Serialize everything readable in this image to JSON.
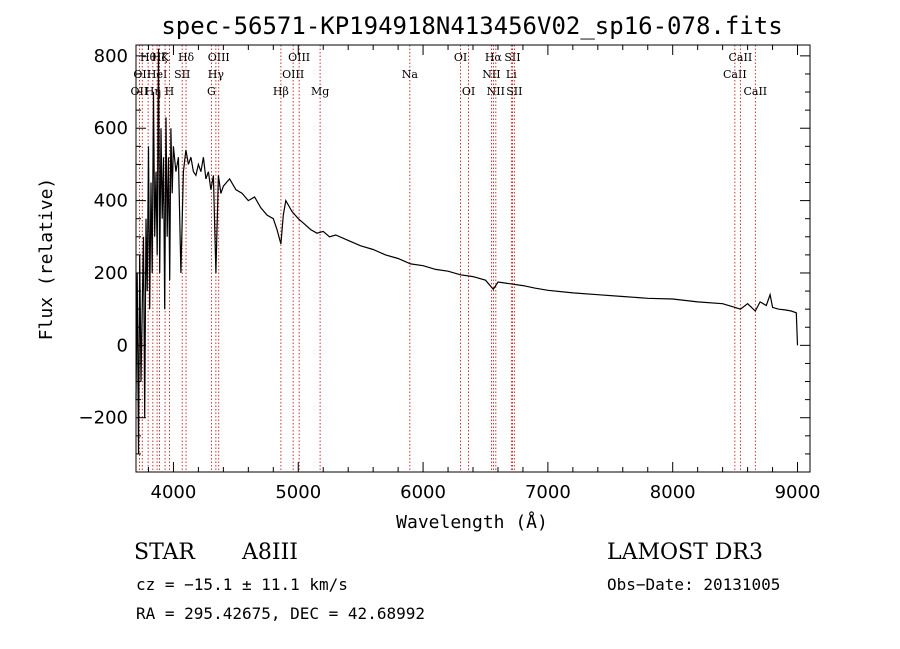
{
  "chart_data": {
    "type": "line",
    "title": "spec-56571-KP194918N413456V02_sp16-078.fits",
    "xlabel": "Wavelength (Å)",
    "ylabel": "Flux (relative)",
    "xlim": [
      3700,
      9100
    ],
    "ylim": [
      -350,
      830
    ],
    "xticks": [
      4000,
      5000,
      6000,
      7000,
      8000,
      9000
    ],
    "xtick_labels": [
      "4000",
      "5000",
      "6000",
      "7000",
      "8000",
      "9000"
    ],
    "yticks": [
      -200,
      0,
      200,
      400,
      600,
      800
    ],
    "ytick_labels": [
      "−200",
      "0",
      "200",
      "400",
      "600",
      "800"
    ],
    "series": [
      {
        "name": "flux",
        "x": [
          3700,
          3710,
          3720,
          3730,
          3740,
          3750,
          3760,
          3770,
          3780,
          3790,
          3800,
          3810,
          3820,
          3830,
          3840,
          3850,
          3860,
          3870,
          3880,
          3890,
          3900,
          3910,
          3920,
          3930,
          3940,
          3950,
          3960,
          3970,
          3980,
          3990,
          4000,
          4020,
          4040,
          4060,
          4080,
          4100,
          4120,
          4140,
          4160,
          4180,
          4200,
          4220,
          4240,
          4260,
          4280,
          4300,
          4320,
          4340,
          4360,
          4380,
          4400,
          4450,
          4500,
          4550,
          4600,
          4650,
          4700,
          4750,
          4800,
          4830,
          4861,
          4880,
          4900,
          4950,
          5000,
          5050,
          5100,
          5150,
          5200,
          5250,
          5300,
          5400,
          5500,
          5600,
          5700,
          5800,
          5900,
          6000,
          6100,
          6200,
          6300,
          6400,
          6500,
          6563,
          6600,
          6700,
          6800,
          6900,
          7000,
          7200,
          7400,
          7600,
          7800,
          8000,
          8200,
          8400,
          8500,
          8542,
          8600,
          8662,
          8700,
          8750,
          8780,
          8800,
          8850,
          8900,
          8950,
          8990,
          9000
        ],
        "y": [
          -150,
          200,
          -300,
          250,
          -100,
          100,
          300,
          -200,
          350,
          150,
          550,
          100,
          450,
          200,
          700,
          300,
          480,
          250,
          820,
          200,
          600,
          350,
          520,
          100,
          630,
          300,
          520,
          180,
          600,
          420,
          550,
          480,
          520,
          200,
          480,
          540,
          500,
          520,
          480,
          470,
          500,
          480,
          520,
          460,
          480,
          430,
          470,
          200,
          470,
          420,
          440,
          460,
          430,
          420,
          400,
          410,
          380,
          360,
          350,
          320,
          280,
          360,
          400,
          370,
          350,
          335,
          320,
          310,
          315,
          300,
          305,
          290,
          275,
          265,
          250,
          240,
          225,
          220,
          210,
          205,
          195,
          190,
          180,
          155,
          175,
          170,
          165,
          158,
          152,
          145,
          140,
          135,
          130,
          128,
          120,
          115,
          105,
          100,
          115,
          95,
          120,
          110,
          140,
          105,
          100,
          98,
          95,
          90,
          0
        ]
      }
    ],
    "lines": [
      {
        "x": 3727,
        "label": "OII",
        "row": 2
      },
      {
        "x": 3750,
        "label": "OII",
        "row": 1
      },
      {
        "x": 3797,
        "label": "Hθ",
        "row": 0
      },
      {
        "x": 3835,
        "label": "Hη",
        "row": 2
      },
      {
        "x": 3869,
        "label": "HeI",
        "row": 1
      },
      {
        "x": 3889,
        "label": "Hζ",
        "row": 0
      },
      {
        "x": 3933,
        "label": "K",
        "row": 0
      },
      {
        "x": 3968,
        "label": "H",
        "row": 2
      },
      {
        "x": 4070,
        "label": "SII",
        "row": 1
      },
      {
        "x": 4101,
        "label": "Hδ",
        "row": 0
      },
      {
        "x": 4304,
        "label": "G",
        "row": 2
      },
      {
        "x": 4340,
        "label": "Hγ",
        "row": 1
      },
      {
        "x": 4363,
        "label": "OIII",
        "row": 0
      },
      {
        "x": 4861,
        "label": "Hβ",
        "row": 2
      },
      {
        "x": 4959,
        "label": "OIII",
        "row": 1
      },
      {
        "x": 5007,
        "label": "OIII",
        "row": 0
      },
      {
        "x": 5175,
        "label": "Mg",
        "row": 2
      },
      {
        "x": 5894,
        "label": "Na",
        "row": 1
      },
      {
        "x": 6300,
        "label": "OI",
        "row": 0
      },
      {
        "x": 6364,
        "label": "OI",
        "row": 2
      },
      {
        "x": 6548,
        "label": "NII",
        "row": 1
      },
      {
        "x": 6563,
        "label": "Hα",
        "row": 0
      },
      {
        "x": 6583,
        "label": "NII",
        "row": 2
      },
      {
        "x": 6707,
        "label": "Li",
        "row": 1
      },
      {
        "x": 6716,
        "label": "SII",
        "row": 0
      },
      {
        "x": 6731,
        "label": "SII",
        "row": 2
      },
      {
        "x": 8498,
        "label": "CaII",
        "row": 1
      },
      {
        "x": 8542,
        "label": "CaII",
        "row": 0
      },
      {
        "x": 8662,
        "label": "CaII",
        "row": 2
      }
    ]
  },
  "info": {
    "object_class": "STAR",
    "subclass": "A8III",
    "survey": "LAMOST DR3",
    "redshift_line": "cz = −15.1 ± 11.1 km/s",
    "obs_date": "Obs−Date: 20131005",
    "coords": "RA = 295.42675, DEC =  42.68992"
  }
}
